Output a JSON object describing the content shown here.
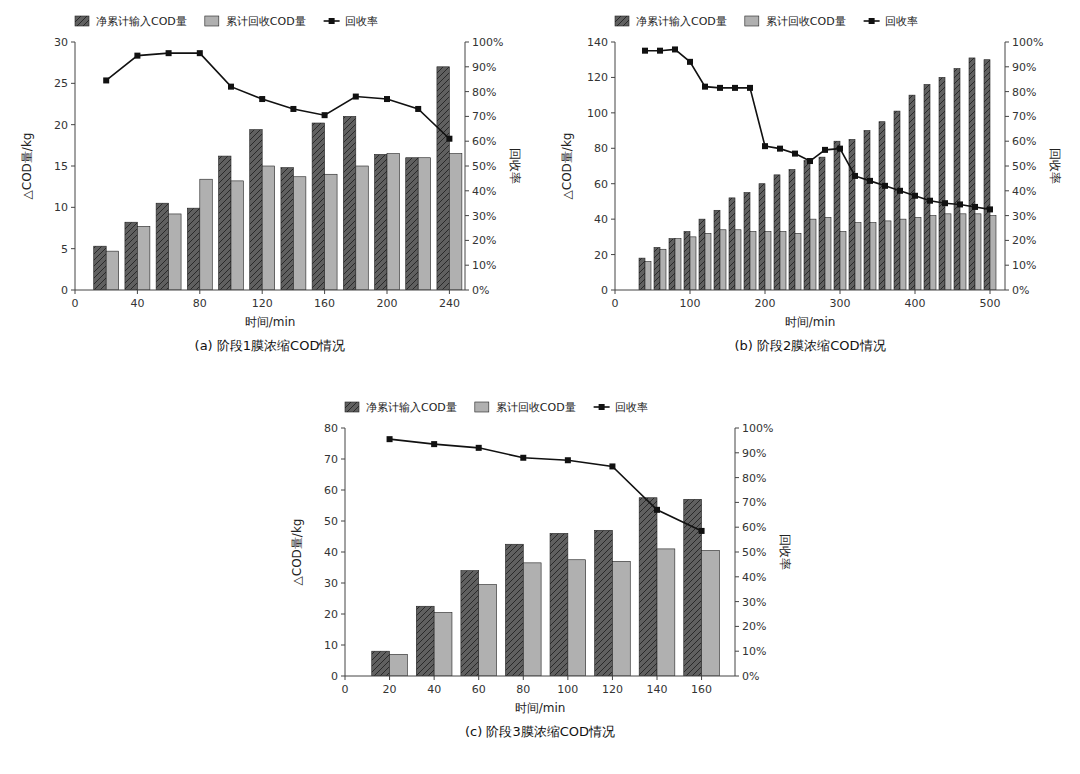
{
  "chart_data": [
    {
      "type": "bar",
      "title": "(a) 阶段1膜浓缩COD情况",
      "xlabel": "时间/min",
      "ylabel": "△COD量/kg",
      "y2label": "回收率",
      "x": [
        20,
        40,
        60,
        80,
        100,
        120,
        140,
        160,
        180,
        200,
        220,
        240
      ],
      "series": [
        {
          "name": "净累计输入COD量",
          "type": "bar",
          "color": "#606060",
          "values": [
            5.3,
            8.2,
            10.5,
            9.9,
            16.2,
            19.4,
            14.8,
            20.2,
            21.0,
            16.4,
            16.0,
            27.0
          ]
        },
        {
          "name": "累计回收COD量",
          "type": "bar",
          "color": "#b0b0b0",
          "values": [
            4.7,
            7.7,
            9.2,
            13.4,
            13.2,
            15.0,
            13.7,
            14.0,
            15.0,
            16.5,
            16.0,
            16.5
          ]
        },
        {
          "name": "回收率",
          "type": "line",
          "axis": "y2",
          "color": "#111111",
          "marker": "square",
          "values": [
            0.845,
            0.945,
            0.955,
            0.955,
            0.82,
            0.77,
            0.73,
            0.705,
            0.78,
            0.77,
            0.73,
            0.61
          ]
        }
      ],
      "xlim": [
        0,
        250
      ],
      "xticks": [
        0,
        40,
        80,
        120,
        160,
        200,
        240
      ],
      "ylim": [
        0,
        30
      ],
      "yticks": [
        0,
        5,
        10,
        15,
        20,
        25,
        30
      ],
      "y2lim": [
        0,
        1.0
      ],
      "y2ticks": [
        {
          "value": 0.0,
          "label": "0%"
        },
        {
          "value": 0.1,
          "label": "10%"
        },
        {
          "value": 0.2,
          "label": "20%"
        },
        {
          "value": 0.3,
          "label": "30%"
        },
        {
          "value": 0.4,
          "label": "40%"
        },
        {
          "value": 0.5,
          "label": "50%"
        },
        {
          "value": 0.6,
          "label": "60%"
        },
        {
          "value": 0.7,
          "label": "70%"
        },
        {
          "value": 0.8,
          "label": "80%"
        },
        {
          "value": 0.9,
          "label": "90%"
        },
        {
          "value": 1.0,
          "label": "100%"
        }
      ],
      "legend": "upper left",
      "grid": false
    },
    {
      "type": "bar",
      "title": "(b) 阶段2膜浓缩COD情况",
      "xlabel": "时间/min",
      "ylabel": "△COD量/kg",
      "y2label": "回收率",
      "x": [
        40,
        60,
        80,
        100,
        120,
        140,
        160,
        180,
        200,
        220,
        240,
        260,
        280,
        300,
        320,
        340,
        360,
        380,
        400,
        420,
        440,
        460,
        480,
        500
      ],
      "series": [
        {
          "name": "净累计输入COD量",
          "type": "bar",
          "color": "#606060",
          "values": [
            18,
            24,
            29,
            33,
            40,
            45,
            52,
            55,
            60,
            65,
            68,
            73,
            75,
            84,
            85,
            90,
            95,
            101,
            110,
            116,
            120,
            125,
            131,
            130
          ]
        },
        {
          "name": "累计回收COD量",
          "type": "bar",
          "color": "#b0b0b0",
          "values": [
            16,
            23,
            29,
            30,
            32,
            34,
            34,
            33,
            33,
            33,
            32,
            40,
            41,
            33,
            38,
            38,
            39,
            40,
            41,
            42,
            43,
            43,
            43,
            42
          ]
        },
        {
          "name": "回收率",
          "type": "line",
          "axis": "y2",
          "color": "#111111",
          "marker": "square",
          "values": [
            0.965,
            0.965,
            0.97,
            0.92,
            0.82,
            0.815,
            0.815,
            0.815,
            0.58,
            0.57,
            0.55,
            0.52,
            0.565,
            0.57,
            0.46,
            0.44,
            0.42,
            0.4,
            0.38,
            0.36,
            0.35,
            0.345,
            0.335,
            0.325
          ]
        }
      ],
      "xlim": [
        0,
        520
      ],
      "xticks": [
        0,
        100,
        200,
        300,
        400,
        500
      ],
      "ylim": [
        0,
        140
      ],
      "yticks": [
        0,
        20,
        40,
        60,
        80,
        100,
        120,
        140
      ],
      "y2lim": [
        0,
        1.0
      ],
      "y2ticks": [
        {
          "value": 0.0,
          "label": "0%"
        },
        {
          "value": 0.1,
          "label": "10%"
        },
        {
          "value": 0.2,
          "label": "20%"
        },
        {
          "value": 0.3,
          "label": "30%"
        },
        {
          "value": 0.4,
          "label": "40%"
        },
        {
          "value": 0.5,
          "label": "50%"
        },
        {
          "value": 0.6,
          "label": "60%"
        },
        {
          "value": 0.7,
          "label": "70%"
        },
        {
          "value": 0.8,
          "label": "80%"
        },
        {
          "value": 0.9,
          "label": "90%"
        },
        {
          "value": 1.0,
          "label": "100%"
        }
      ],
      "legend": "upper left",
      "grid": false
    },
    {
      "type": "bar",
      "title": "(c) 阶段3膜浓缩COD情况",
      "xlabel": "时间/min",
      "ylabel": "△COD量/kg",
      "y2label": "回收率",
      "x": [
        20,
        40,
        60,
        80,
        100,
        120,
        140,
        160
      ],
      "series": [
        {
          "name": "净累计输入COD量",
          "type": "bar",
          "color": "#606060",
          "values": [
            8.0,
            22.5,
            34.0,
            42.5,
            46.0,
            47.0,
            57.5,
            57.0
          ]
        },
        {
          "name": "累计回收COD量",
          "type": "bar",
          "color": "#b0b0b0",
          "values": [
            7.0,
            20.5,
            29.5,
            36.5,
            37.5,
            37.0,
            41.0,
            40.5
          ]
        },
        {
          "name": "回收率",
          "type": "line",
          "axis": "y2",
          "color": "#111111",
          "marker": "square",
          "values": [
            0.955,
            0.935,
            0.92,
            0.88,
            0.87,
            0.845,
            0.67,
            0.585
          ]
        }
      ],
      "xlim": [
        0,
        175
      ],
      "xticks": [
        0,
        20,
        40,
        60,
        80,
        100,
        120,
        140,
        160
      ],
      "ylim": [
        0,
        80
      ],
      "yticks": [
        0,
        10,
        20,
        30,
        40,
        50,
        60,
        70,
        80
      ],
      "y2lim": [
        0,
        1.0
      ],
      "y2ticks": [
        {
          "value": 0.0,
          "label": "0%"
        },
        {
          "value": 0.1,
          "label": "10%"
        },
        {
          "value": 0.2,
          "label": "20%"
        },
        {
          "value": 0.3,
          "label": "30%"
        },
        {
          "value": 0.4,
          "label": "40%"
        },
        {
          "value": 0.5,
          "label": "50%"
        },
        {
          "value": 0.6,
          "label": "60%"
        },
        {
          "value": 0.7,
          "label": "70%"
        },
        {
          "value": 0.8,
          "label": "80%"
        },
        {
          "value": 0.9,
          "label": "90%"
        },
        {
          "value": 1.0,
          "label": "100%"
        }
      ],
      "legend": "upper left",
      "grid": false
    }
  ]
}
